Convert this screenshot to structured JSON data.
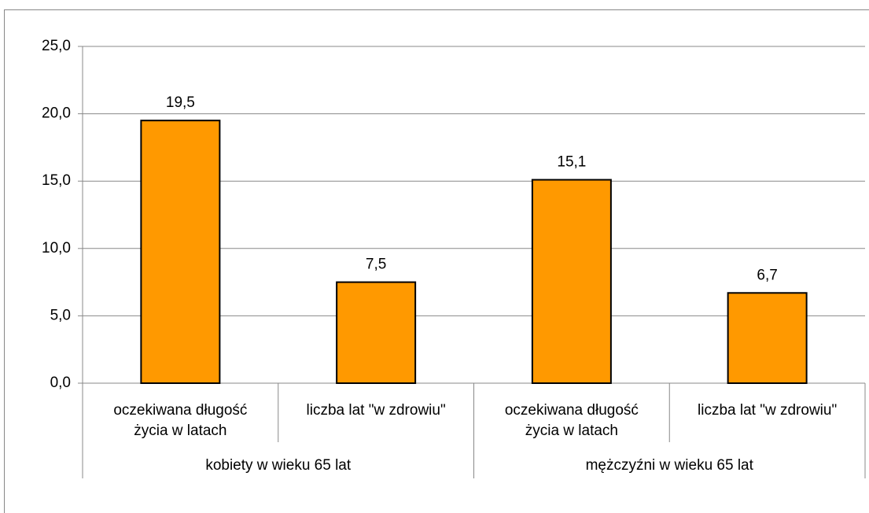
{
  "chart_data": {
    "type": "bar",
    "categories": [
      [
        "oczekiwana długość",
        "życia w latach"
      ],
      [
        "liczba lat \"w zdrowiu\""
      ],
      [
        "oczekiwana długość",
        "życia w latach"
      ],
      [
        "liczba lat \"w zdrowiu\""
      ]
    ],
    "groups": [
      "kobiety w wieku 65 lat",
      "mężczyźni w wieku 65 lat"
    ],
    "values": [
      19.5,
      7.5,
      15.1,
      6.7
    ],
    "value_labels": [
      "19,5",
      "7,5",
      "15,1",
      "6,7"
    ],
    "color": "#ff9900",
    "ylim": [
      0,
      25
    ],
    "yticks": [
      {
        "value": 0,
        "label": "0,0"
      },
      {
        "value": 5,
        "label": "5,0"
      },
      {
        "value": 10,
        "label": "10,0"
      },
      {
        "value": 15,
        "label": "15,0"
      },
      {
        "value": 20,
        "label": "20,0"
      },
      {
        "value": 25,
        "label": "25,0"
      }
    ],
    "grid": true
  }
}
